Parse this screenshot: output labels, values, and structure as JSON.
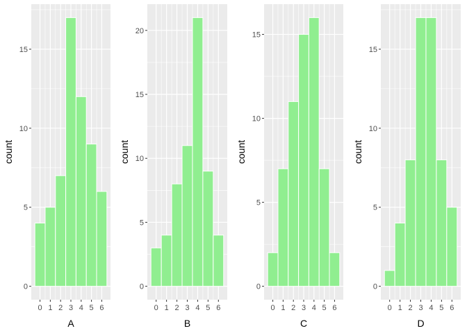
{
  "figure": {
    "panel_background": "#EBEBEB",
    "gridline_color": "#FFFFFF",
    "bar_fill": "#90EE90",
    "bar_outline": "#FFFFFF",
    "text_color": "#000000",
    "tick_label_color": "#4D4D4D"
  },
  "chart_data": [
    {
      "type": "bar",
      "xlabel": "A",
      "ylabel": "count",
      "categories": [
        "0",
        "1",
        "2",
        "3",
        "4",
        "5",
        "6"
      ],
      "values": [
        4,
        5,
        7,
        17,
        12,
        9,
        6
      ],
      "yticks": [
        0,
        5,
        10,
        15
      ],
      "ylim": [
        0,
        17.85
      ],
      "grid": true
    },
    {
      "type": "bar",
      "xlabel": "B",
      "ylabel": "count",
      "categories": [
        "0",
        "1",
        "2",
        "3",
        "4",
        "5",
        "6"
      ],
      "values": [
        3,
        4,
        8,
        11,
        21,
        9,
        4
      ],
      "yticks": [
        0,
        5,
        10,
        15,
        20
      ],
      "ylim": [
        0,
        22.05
      ],
      "grid": true
    },
    {
      "type": "bar",
      "xlabel": "C",
      "ylabel": "count",
      "categories": [
        "0",
        "1",
        "2",
        "3",
        "4",
        "5",
        "6"
      ],
      "values": [
        2,
        7,
        11,
        15,
        16,
        7,
        2
      ],
      "yticks": [
        0,
        5,
        10,
        15
      ],
      "ylim": [
        0,
        16.8
      ],
      "grid": true
    },
    {
      "type": "bar",
      "xlabel": "D",
      "ylabel": "count",
      "categories": [
        "0",
        "1",
        "2",
        "3",
        "4",
        "5",
        "6"
      ],
      "values": [
        1,
        4,
        8,
        17,
        17,
        8,
        5
      ],
      "yticks": [
        0,
        5,
        10,
        15
      ],
      "ylim": [
        0,
        17.85
      ],
      "grid": true
    }
  ]
}
